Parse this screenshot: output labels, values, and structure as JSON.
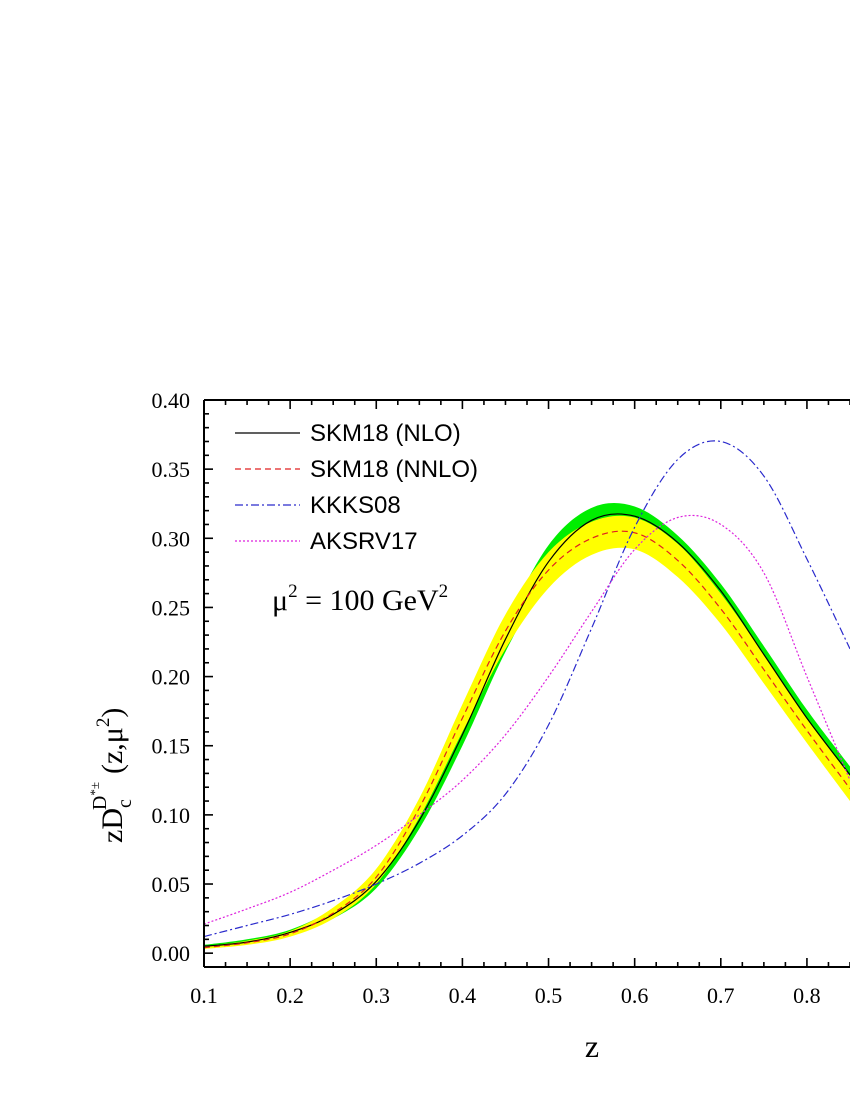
{
  "chart_data": {
    "type": "line",
    "xlabel": "z",
    "ylabel": {
      "prefix": "zD",
      "sub": "c",
      "sup_main": "D",
      "sup_star": "*±",
      "args": "(z,μ",
      "args_sup": "2",
      "args_end": ")"
    },
    "xlim": [
      0.1,
      0.85
    ],
    "ylim": [
      -0.01,
      0.4
    ],
    "xticks": [
      {
        "value": 0.1,
        "label": "0.1"
      },
      {
        "value": 0.2,
        "label": "0.2"
      },
      {
        "value": 0.3,
        "label": "0.3"
      },
      {
        "value": 0.4,
        "label": "0.4"
      },
      {
        "value": 0.5,
        "label": "0.5"
      },
      {
        "value": 0.6,
        "label": "0.6"
      },
      {
        "value": 0.7,
        "label": "0.7"
      },
      {
        "value": 0.8,
        "label": "0.8"
      }
    ],
    "yticks": [
      {
        "value": 0.0,
        "label": "0.00"
      },
      {
        "value": 0.05,
        "label": "0.05"
      },
      {
        "value": 0.1,
        "label": "0.10"
      },
      {
        "value": 0.15,
        "label": "0.15"
      },
      {
        "value": 0.2,
        "label": "0.20"
      },
      {
        "value": 0.25,
        "label": "0.25"
      },
      {
        "value": 0.3,
        "label": "0.30"
      },
      {
        "value": 0.35,
        "label": "0.35"
      },
      {
        "value": 0.4,
        "label": "0.40"
      }
    ],
    "annotation": {
      "text": "μ",
      "sup": "2",
      "rest": " = 100 GeV",
      "sup2": "2"
    },
    "legend_position": "top-left",
    "x": [
      0.1,
      0.15,
      0.2,
      0.25,
      0.3,
      0.35,
      0.4,
      0.45,
      0.5,
      0.55,
      0.6,
      0.65,
      0.7,
      0.75,
      0.8,
      0.85
    ],
    "bands": [
      {
        "name": "SKM18 (NLO) uncertainty",
        "color": "#00ee00",
        "lower": [
          0.004,
          0.007,
          0.013,
          0.025,
          0.047,
          0.09,
          0.15,
          0.218,
          0.272,
          0.305,
          0.31,
          0.292,
          0.257,
          0.21,
          0.165,
          0.123
        ],
        "upper": [
          0.006,
          0.01,
          0.017,
          0.032,
          0.058,
          0.103,
          0.168,
          0.238,
          0.295,
          0.322,
          0.323,
          0.302,
          0.267,
          0.222,
          0.176,
          0.135
        ]
      },
      {
        "name": "SKM18 (NNLO) uncertainty",
        "color": "#ffff00",
        "lower": [
          0.003,
          0.006,
          0.012,
          0.025,
          0.05,
          0.098,
          0.16,
          0.22,
          0.264,
          0.288,
          0.292,
          0.272,
          0.238,
          0.195,
          0.152,
          0.11
        ],
        "upper": [
          0.005,
          0.009,
          0.016,
          0.033,
          0.061,
          0.112,
          0.18,
          0.245,
          0.29,
          0.312,
          0.315,
          0.296,
          0.26,
          0.216,
          0.17,
          0.128
        ]
      }
    ],
    "series": [
      {
        "name": "SKM18 (NLO)",
        "color": "#000000",
        "dash": "",
        "values": [
          0.005,
          0.008,
          0.015,
          0.028,
          0.052,
          0.096,
          0.158,
          0.227,
          0.283,
          0.313,
          0.316,
          0.297,
          0.262,
          0.216,
          0.17,
          0.129
        ]
      },
      {
        "name": "SKM18 (NNLO)",
        "color": "#e02020",
        "dash": "6,4",
        "values": [
          0.004,
          0.0075,
          0.014,
          0.029,
          0.055,
          0.105,
          0.17,
          0.233,
          0.277,
          0.3,
          0.304,
          0.284,
          0.249,
          0.205,
          0.161,
          0.119
        ]
      },
      {
        "name": "KKKS08",
        "color": "#2a2acc",
        "dash": "8,3,2,3",
        "values": [
          0.012,
          0.02,
          0.028,
          0.038,
          0.05,
          0.065,
          0.085,
          0.115,
          0.165,
          0.235,
          0.308,
          0.357,
          0.37,
          0.345,
          0.285,
          0.22
        ]
      },
      {
        "name": "AKSRV17",
        "color": "#dd22dd",
        "dash": "2,2",
        "values": [
          0.021,
          0.032,
          0.044,
          0.06,
          0.078,
          0.1,
          0.125,
          0.158,
          0.2,
          0.247,
          0.292,
          0.315,
          0.31,
          0.275,
          0.2,
          0.125
        ]
      }
    ]
  }
}
